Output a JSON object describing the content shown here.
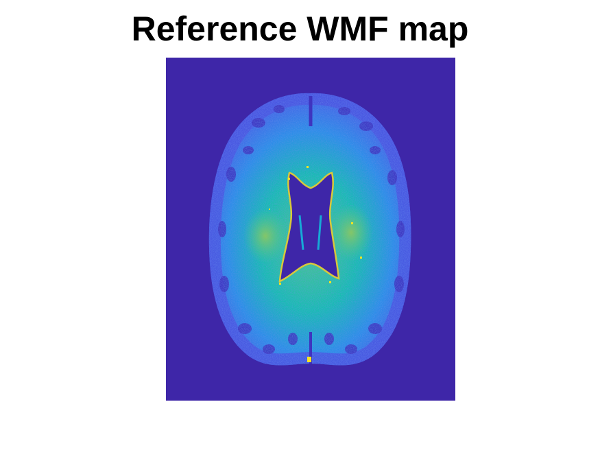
{
  "figure": {
    "title": "Reference WMF map"
  },
  "image": {
    "subject": "axial brain slice",
    "colormap": [
      "#3e26a8",
      "#4544d8",
      "#3a70f0",
      "#2c8ee8",
      "#17a9d6",
      "#17bdb1",
      "#52c58b",
      "#a7c74e",
      "#e8bf3b",
      "#f9e521"
    ],
    "background_color": "#3e26a8"
  }
}
